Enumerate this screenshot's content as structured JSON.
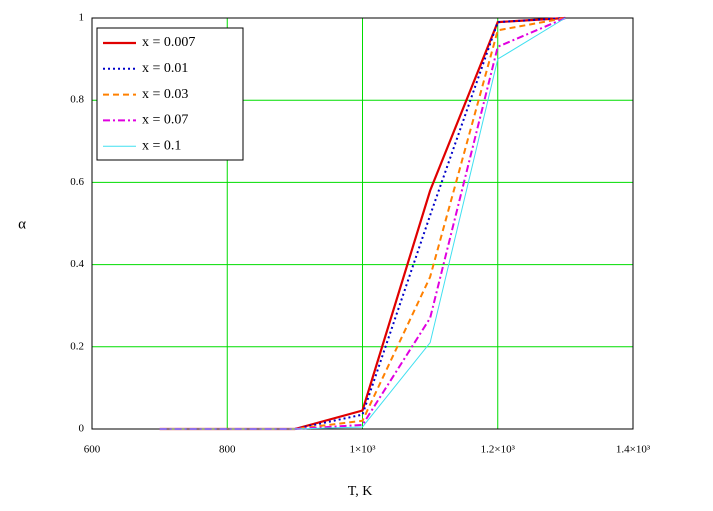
{
  "chart_data": {
    "type": "line",
    "xlabel": "T, K",
    "ylabel": "α",
    "x": [
      700,
      800,
      900,
      1000,
      1100,
      1200,
      1300
    ],
    "series": [
      {
        "name": "x = 0.007",
        "color": "#e00000",
        "style": "solid",
        "values": [
          0,
          0,
          0,
          0.045,
          0.58,
          0.99,
          1
        ]
      },
      {
        "name": "x = 0.01",
        "color": "#0000c8",
        "style": "dotted",
        "values": [
          0,
          0,
          0,
          0.035,
          0.52,
          0.99,
          1
        ]
      },
      {
        "name": "x = 0.03",
        "color": "#ff8000",
        "style": "dashed",
        "values": [
          0,
          0,
          0,
          0.02,
          0.37,
          0.97,
          1
        ]
      },
      {
        "name": "x = 0.07",
        "color": "#e000e0",
        "style": "dashdot",
        "values": [
          0,
          0,
          0,
          0.01,
          0.27,
          0.93,
          1
        ]
      },
      {
        "name": "x = 0.1",
        "color": "#40e0f0",
        "style": "thin",
        "values": [
          0,
          0,
          0,
          0.005,
          0.21,
          0.9,
          1
        ]
      }
    ],
    "xlim": [
      600,
      1400
    ],
    "xticks": [
      600,
      800,
      {
        "value": 1000,
        "label": "1×10³"
      },
      {
        "value": 1200,
        "label": "1.2×10³"
      },
      {
        "value": 1400,
        "label": "1.4×10³"
      }
    ],
    "ylim": [
      0,
      1
    ],
    "yticks": [
      0,
      0.2,
      0.4,
      0.6,
      0.8,
      1
    ],
    "grid": true,
    "grid_color": "#00dd00",
    "legend": "upper left"
  }
}
